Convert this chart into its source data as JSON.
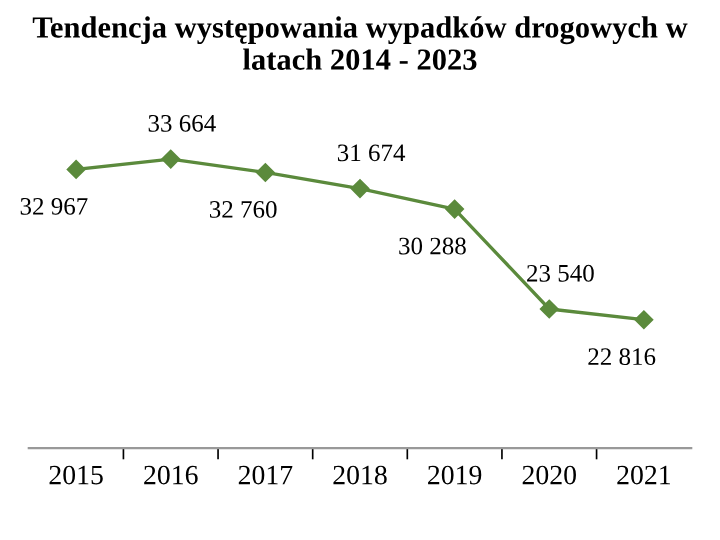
{
  "chart_data": {
    "type": "line",
    "title": "Tendencja występowania wypadków drogowych w latach 2014 - 2023",
    "categories": [
      "2015",
      "2016",
      "2017",
      "2018",
      "2019",
      "2020",
      "2021"
    ],
    "series": [
      {
        "color": "#5b8a3c",
        "values": [
          32967,
          33664,
          32760,
          31674,
          30288,
          23540,
          22816
        ]
      }
    ],
    "data_labels": true,
    "marker": "diamond",
    "line_style": "solid",
    "grid": false,
    "legend": false,
    "tick_labels": "x"
  }
}
